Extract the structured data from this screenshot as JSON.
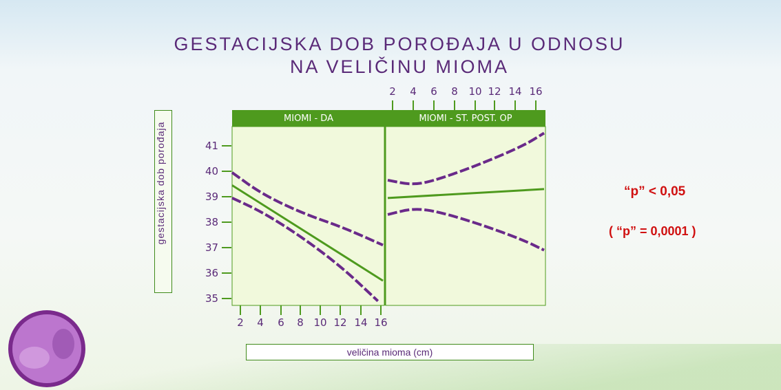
{
  "title": {
    "line1": "GESTACIJSKA  DOB  POROĐAJA  U  ODNOSU",
    "line2": "NA  VELIČINU  MIOMA"
  },
  "panels": {
    "left_label": "MIOMI  -  DA",
    "right_label": "MIOMI  -  ST. POST. OP"
  },
  "y_axis_label": "gestacijska  dob  porođaja",
  "x_axis_label": "veličina  mioma  (cm)",
  "p_value": {
    "line1": "“p”  <  0,05",
    "line2": "( “p” =  0,0001 )"
  },
  "colors": {
    "title": "#5a2a78",
    "green": "#4e9a1e",
    "purple_dashed": "#6a2a8a",
    "panel_fill": "#f1f9dc",
    "p_text": "#d01010"
  },
  "chart_data": {
    "type": "line",
    "title": "GESTACIJSKA  DOB  POROĐAJA  U  ODNOSU NA  VELIČINU  MIOMA",
    "xlabel": "veličina  mioma  (cm)",
    "ylabel": "gestacijska  dob  porođaja",
    "x_ticks": [
      "2",
      "4",
      "6",
      "8",
      "10",
      "12",
      "14",
      "16"
    ],
    "x_tick_values": [
      2,
      4,
      6,
      8,
      10,
      12,
      14,
      16
    ],
    "y_ticks": [
      "41",
      "40",
      "39",
      "38",
      "37",
      "36",
      "35"
    ],
    "y_tick_values": [
      41,
      40,
      39,
      38,
      37,
      36,
      35
    ],
    "xlim": [
      1,
      16.5
    ],
    "ylim": [
      34.8,
      42.5
    ],
    "grid": false,
    "panels": [
      {
        "name": "MIOMI  -  DA",
        "series": [
          {
            "style": "solid",
            "points": [
              [
                1,
                39.45
              ],
              [
                16,
                35.7
              ]
            ]
          },
          {
            "style": "dashed",
            "points": [
              [
                1,
                39.95
              ],
              [
                4,
                39.1
              ],
              [
                8,
                38.35
              ],
              [
                12,
                37.8
              ],
              [
                16,
                37.1
              ]
            ]
          },
          {
            "style": "dashed",
            "points": [
              [
                1,
                38.95
              ],
              [
                4,
                38.4
              ],
              [
                8,
                37.4
              ],
              [
                12,
                36.2
              ],
              [
                15.5,
                34.9
              ]
            ]
          }
        ]
      },
      {
        "name": "MIOMI  -  ST. POST. OP",
        "series": [
          {
            "style": "solid",
            "points": [
              [
                1,
                38.95
              ],
              [
                16,
                39.3
              ]
            ]
          },
          {
            "style": "dashed",
            "points": [
              [
                1,
                39.65
              ],
              [
                3.5,
                39.45
              ],
              [
                6,
                39.7
              ],
              [
                10,
                40.3
              ],
              [
                14,
                41.0
              ],
              [
                16,
                41.5
              ]
            ]
          },
          {
            "style": "dashed",
            "points": [
              [
                1,
                38.3
              ],
              [
                3.5,
                38.55
              ],
              [
                6,
                38.4
              ],
              [
                10,
                37.9
              ],
              [
                14,
                37.3
              ],
              [
                16,
                36.9
              ]
            ]
          }
        ]
      }
    ]
  }
}
